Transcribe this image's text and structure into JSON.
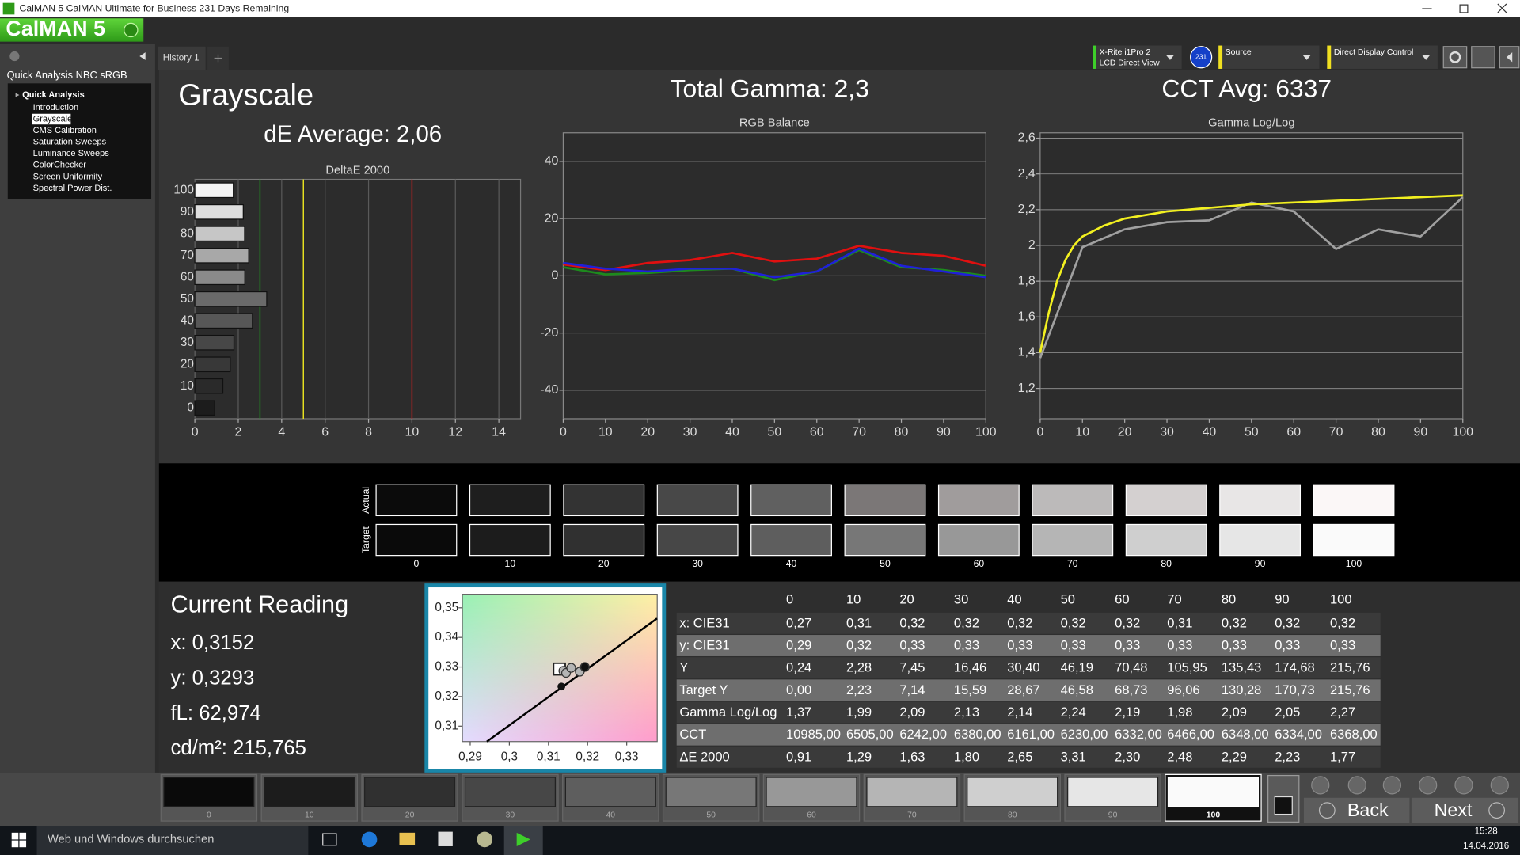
{
  "window": {
    "title": "CalMAN 5 CalMAN Ultimate for Business 231 Days Remaining"
  },
  "app": {
    "logo": "CalMAN 5",
    "tab": "History 1",
    "meter": [
      "X-Rite i1Pro 2",
      "LCD Direct View"
    ],
    "meter_badge": "231",
    "source": "Source",
    "display": "Direct Display Control"
  },
  "sidebar": {
    "workflow": "Quick Analysis NBC sRGB",
    "group": "Quick Analysis",
    "items": [
      "Introduction",
      "Grayscale",
      "CMS Calibration",
      "Saturation Sweeps",
      "Luminance Sweeps",
      "ColorChecker",
      "Screen Uniformity",
      "Spectral Power Dist."
    ],
    "selected": 1
  },
  "header": {
    "page": "Grayscale",
    "de_average": "dE Average: 2,06",
    "gamma": "Total Gamma: 2,3",
    "cct": "CCT Avg: 6337"
  },
  "chart_data": [
    {
      "type": "bar",
      "orientation": "horizontal",
      "title": "DeltaE 2000",
      "categories": [
        "0",
        "10",
        "20",
        "30",
        "40",
        "50",
        "60",
        "70",
        "80",
        "90",
        "100"
      ],
      "values": [
        0.91,
        1.29,
        1.63,
        1.8,
        2.65,
        3.31,
        2.3,
        2.48,
        2.29,
        2.23,
        1.77
      ],
      "bar_colors": [
        "#1c1c1c",
        "#2a2a2a",
        "#383838",
        "#474747",
        "#575757",
        "#6a6a6a",
        "#8a8a8a",
        "#a8a8a8",
        "#c6c6c6",
        "#dedede",
        "#f4f4f4"
      ],
      "xlim": [
        0,
        15
      ],
      "xticks": [
        0,
        2,
        4,
        6,
        8,
        10,
        12,
        14
      ],
      "thresholds": [
        {
          "value": 3,
          "color": "#1f9a1f"
        },
        {
          "value": 5,
          "color": "#e6e020"
        },
        {
          "value": 10,
          "color": "#d01818"
        }
      ],
      "grid": true
    },
    {
      "type": "line",
      "title": "RGB Balance",
      "x": [
        0,
        10,
        20,
        30,
        40,
        50,
        60,
        70,
        80,
        90,
        100
      ],
      "series": [
        {
          "color": "#e01010",
          "values": [
            4,
            2,
            4.5,
            5.5,
            8,
            5,
            6,
            10.5,
            8,
            7,
            3.5
          ]
        },
        {
          "color": "#1d8a1d",
          "values": [
            3,
            0.5,
            1,
            2,
            2.5,
            -1.5,
            1.5,
            9,
            3,
            2,
            0
          ]
        },
        {
          "color": "#2020d8",
          "values": [
            4.5,
            2.5,
            1.5,
            2.5,
            2.5,
            -0.5,
            1.5,
            9.5,
            3.5,
            1.5,
            -0.5
          ]
        }
      ],
      "xlim": [
        0,
        100
      ],
      "xticks": [
        0,
        10,
        20,
        30,
        40,
        50,
        60,
        70,
        80,
        90,
        100
      ],
      "ylim": [
        -50,
        50
      ],
      "yticks": [
        -40,
        -20,
        0,
        20,
        40
      ],
      "grid": "y"
    },
    {
      "type": "line",
      "title": "Gamma Log/Log",
      "series": [
        {
          "color": "#a0a0a0",
          "x": [
            0,
            10,
            20,
            30,
            40,
            50,
            60,
            70,
            80,
            90,
            100
          ],
          "values": [
            1.37,
            1.99,
            2.09,
            2.13,
            2.14,
            2.24,
            2.19,
            1.98,
            2.09,
            2.05,
            2.27
          ]
        },
        {
          "color": "#f2f020",
          "x": [
            0,
            2,
            4,
            6,
            8,
            10,
            15,
            20,
            30,
            40,
            50,
            60,
            70,
            80,
            90,
            100
          ],
          "values": [
            1.4,
            1.62,
            1.8,
            1.92,
            2.0,
            2.05,
            2.11,
            2.15,
            2.19,
            2.21,
            2.23,
            2.24,
            2.25,
            2.26,
            2.27,
            2.28
          ]
        }
      ],
      "xlim": [
        0,
        100
      ],
      "xticks": [
        0,
        10,
        20,
        30,
        40,
        50,
        60,
        70,
        80,
        90,
        100
      ],
      "ylim": [
        1.03,
        2.63
      ],
      "yticks": [
        {
          "value": 1.2,
          "label": "1,2"
        },
        {
          "value": 1.4,
          "label": "1,4"
        },
        {
          "value": 1.6,
          "label": "1,6"
        },
        {
          "value": 1.8,
          "label": "1,8"
        },
        2,
        {
          "value": 2.2,
          "label": "2,2"
        },
        {
          "value": 2.4,
          "label": "2,4"
        },
        {
          "value": 2.6,
          "label": "2,6"
        }
      ],
      "grid": "y"
    },
    {
      "type": "scatter",
      "xlim": [
        0.288,
        0.3378
      ],
      "xticks": [
        {
          "value": 0.29,
          "label": "0,29"
        },
        {
          "value": 0.3,
          "label": "0,3"
        },
        {
          "value": 0.31,
          "label": "0,31"
        },
        {
          "value": 0.32,
          "label": "0,32"
        },
        {
          "value": 0.33,
          "label": "0,33"
        }
      ],
      "ylim": [
        0.3048,
        0.3546
      ],
      "yticks": [
        {
          "value": 0.31,
          "label": "0,31"
        },
        {
          "value": 0.32,
          "label": "0,32"
        },
        {
          "value": 0.33,
          "label": "0,33"
        },
        {
          "value": 0.34,
          "label": "0,34"
        },
        {
          "value": 0.35,
          "label": "0,35"
        }
      ],
      "locus": {
        "color": "#000000",
        "x": [
          0.29425,
          0.33775
        ],
        "y": [
          0.3048,
          0.3464
        ]
      },
      "series": [
        {
          "marker": "square",
          "color": "#ffffff",
          "x": [
            0.3128
          ],
          "values": [
            0.3293
          ]
        },
        {
          "marker": "circle",
          "color": "#b4b4b4",
          "x": [
            0.3138,
            0.3145,
            0.3158,
            0.318,
            0.3193
          ],
          "values": [
            0.3287,
            0.328,
            0.3297,
            0.3284,
            0.33
          ]
        },
        {
          "marker": "dot",
          "color": "#111111",
          "x": [
            0.3133,
            0.3193
          ],
          "values": [
            0.3234,
            0.33
          ]
        }
      ]
    }
  ],
  "swatches": {
    "actual_label": "Actual",
    "target_label": "Target",
    "levels": [
      "0",
      "10",
      "20",
      "30",
      "40",
      "50",
      "60",
      "70",
      "80",
      "90",
      "100"
    ],
    "actual_colors": [
      "#0b0b0b",
      "#1e1e1e",
      "#333333",
      "#484848",
      "#606060",
      "#7b7777",
      "#a09c9c",
      "#bcbaba",
      "#d4d0d0",
      "#e8e6e6",
      "#fbf7f7"
    ],
    "target_colors": [
      "#0a0a0a",
      "#1c1c1c",
      "#303030",
      "#474747",
      "#5e5e5e",
      "#777777",
      "#989898",
      "#b5b5b5",
      "#cfcfcf",
      "#e6e6e6",
      "#fafafa"
    ]
  },
  "reading": {
    "title": "Current Reading",
    "lines": [
      "x: 0,3152",
      "y: 0,3293",
      "fL: 62,974",
      "cd/m²: 215,765"
    ]
  },
  "table": {
    "header": [
      "0",
      "10",
      "20",
      "30",
      "40",
      "50",
      "60",
      "70",
      "80",
      "90",
      "100"
    ],
    "rows": [
      [
        "x: CIE31",
        "0,27",
        "0,31",
        "0,32",
        "0,32",
        "0,32",
        "0,32",
        "0,32",
        "0,31",
        "0,32",
        "0,32",
        "0,32"
      ],
      [
        "y: CIE31",
        "0,29",
        "0,32",
        "0,33",
        "0,33",
        "0,33",
        "0,33",
        "0,33",
        "0,33",
        "0,33",
        "0,33",
        "0,33"
      ],
      [
        "Y",
        "0,24",
        "2,28",
        "7,45",
        "16,46",
        "30,40",
        "46,19",
        "70,48",
        "105,95",
        "135,43",
        "174,68",
        "215,76"
      ],
      [
        "Target Y",
        "0,00",
        "2,23",
        "7,14",
        "15,59",
        "28,67",
        "46,58",
        "68,73",
        "96,06",
        "130,28",
        "170,73",
        "215,76"
      ],
      [
        "Gamma Log/Log",
        "1,37",
        "1,99",
        "2,09",
        "2,13",
        "2,14",
        "2,24",
        "2,19",
        "1,98",
        "2,09",
        "2,05",
        "2,27"
      ],
      [
        "CCT",
        "10985,00",
        "6505,00",
        "6242,00",
        "6380,00",
        "6161,00",
        "6230,00",
        "6332,00",
        "6466,00",
        "6348,00",
        "6334,00",
        "6368,00"
      ],
      [
        "ΔE 2000",
        "0,91",
        "1,29",
        "1,63",
        "1,80",
        "2,65",
        "3,31",
        "2,30",
        "2,48",
        "2,29",
        "2,23",
        "1,77"
      ]
    ]
  },
  "footer": {
    "levels": [
      "0",
      "10",
      "20",
      "30",
      "40",
      "50",
      "60",
      "70",
      "80",
      "90",
      "100"
    ],
    "selected": 10,
    "back": "Back",
    "next": "Next"
  },
  "taskbar": {
    "search": "Web und Windows durchsuchen",
    "time": "15:28",
    "date": "14.04.2016"
  }
}
